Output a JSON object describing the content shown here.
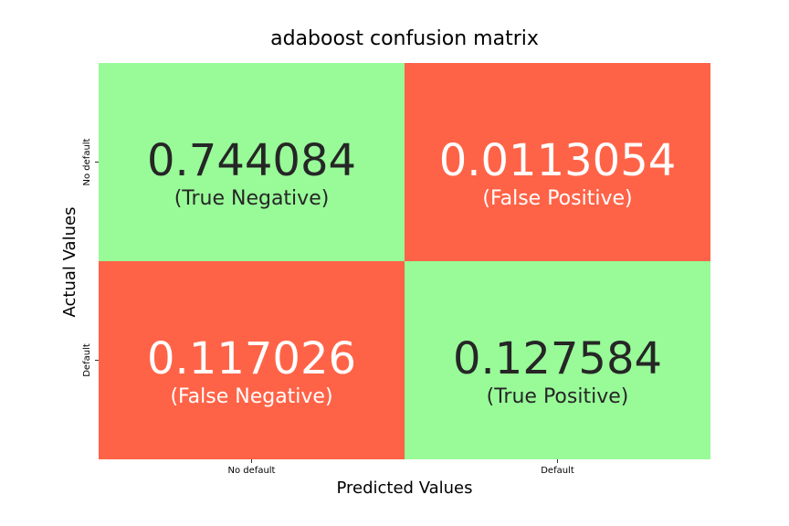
{
  "chart_data": {
    "type": "heatmap",
    "title": "adaboost confusion matrix",
    "xlabel": "Predicted Values",
    "ylabel": "Actual Values",
    "x_ticks": [
      "No default",
      "Default"
    ],
    "y_ticks": [
      "No default",
      "Default"
    ],
    "colors": {
      "correct": "#98fb98",
      "incorrect": "#ff6347"
    },
    "cells": [
      {
        "row": 0,
        "col": 0,
        "value": "0.744084",
        "label": "(True Negative)",
        "kind": "correct"
      },
      {
        "row": 0,
        "col": 1,
        "value": "0.0113054",
        "label": "(False Positive)",
        "kind": "incorrect"
      },
      {
        "row": 1,
        "col": 0,
        "value": "0.117026",
        "label": "(False Negative)",
        "kind": "incorrect"
      },
      {
        "row": 1,
        "col": 1,
        "value": "0.127584",
        "label": "(True Positive)",
        "kind": "correct"
      }
    ]
  }
}
